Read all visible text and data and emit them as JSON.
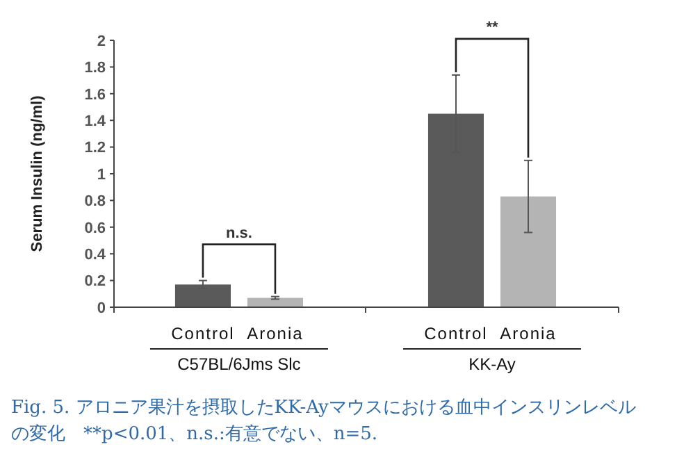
{
  "chart_data": {
    "type": "bar",
    "ylabel": "Serum Insulin (ng/ml)",
    "categories": [
      "Control",
      "Aronia",
      "Control",
      "Aronia"
    ],
    "values": [
      0.17,
      0.07,
      1.45,
      0.83
    ],
    "errors": [
      0.03,
      0.01,
      0.29,
      0.27
    ],
    "colors": [
      "#5a5a5a",
      "#b4b4b4",
      "#5a5a5a",
      "#b4b4b4"
    ],
    "ylim": [
      0,
      2
    ],
    "yticks": [
      0,
      0.2,
      0.4,
      0.6,
      0.8,
      1,
      1.2,
      1.4,
      1.6,
      1.8,
      2
    ],
    "grid": false,
    "annotations": [
      "C57BL/6Jms Slc",
      "KK-Ay",
      "n.s.",
      "**",
      "Fig. 5. アロニア果汁を摂取したKK-Ayマウスにおける血中インスリンレベルの変化　**p<0.01、n.s.:有意でない、n=5."
    ]
  }
}
